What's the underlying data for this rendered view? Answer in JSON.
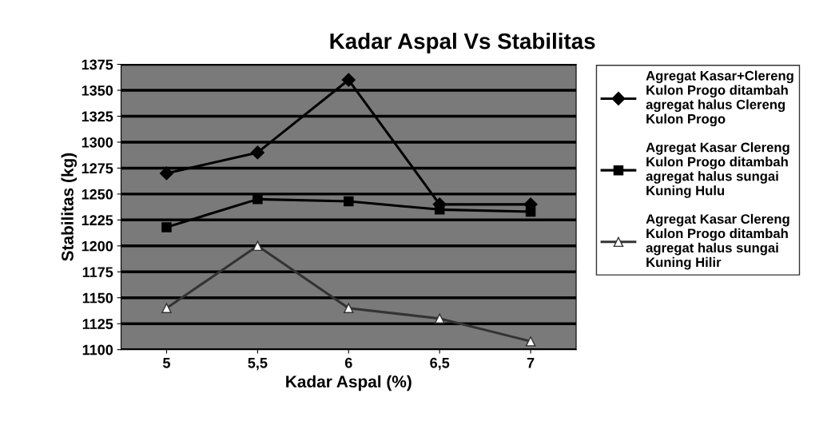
{
  "chart_data": {
    "type": "line",
    "title": "Kadar Aspal Vs Stabilitas",
    "xlabel": "Kadar Aspal (%)",
    "ylabel": "Stabilitas (kg)",
    "categories": [
      "5",
      "5,5",
      "6",
      "6,5",
      "7"
    ],
    "series": [
      {
        "name": "Agregat Kasar+Clereng Kulon Progo ditambah agregat halus Clereng Kulon Progo",
        "color": "#000000",
        "marker": "diamond",
        "values": [
          1270,
          1290,
          1360,
          1240,
          1240
        ]
      },
      {
        "name": "Agregat Kasar Clereng Kulon Progo ditambah agregat halus sungai Kuning Hulu",
        "color": "#000000",
        "marker": "square",
        "values": [
          1218,
          1245,
          1243,
          1235,
          1233
        ]
      },
      {
        "name": "Agregat Kasar Clereng Kulon Progo ditambah agregat halus sungai Kuning Hilir",
        "color": "#333333",
        "marker": "triangle",
        "values": [
          1140,
          1200,
          1140,
          1130,
          1108
        ]
      }
    ],
    "ylim": [
      1100,
      1375
    ],
    "yticks": [
      1100,
      1125,
      1150,
      1175,
      1200,
      1225,
      1250,
      1275,
      1300,
      1325,
      1350,
      1375
    ],
    "grid": "y",
    "legend": "right",
    "line_style": "solid"
  }
}
